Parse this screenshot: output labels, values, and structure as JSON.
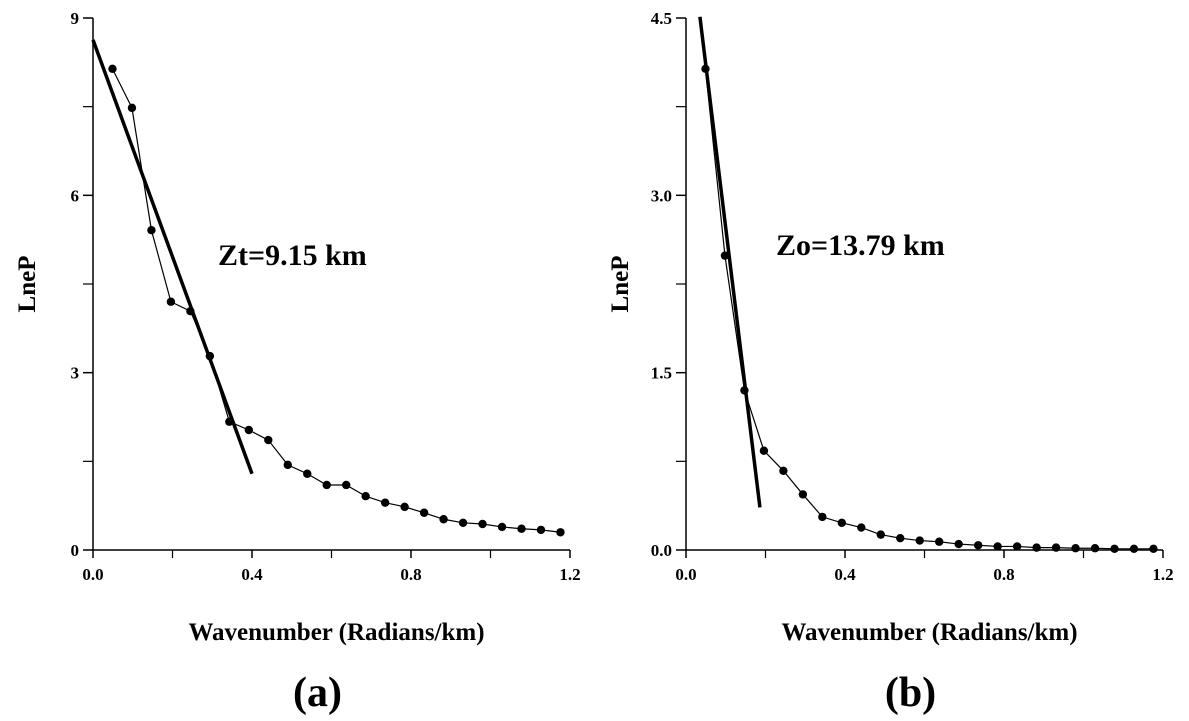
{
  "chart_data": [
    {
      "type": "line",
      "panel_label": "(a)",
      "xlabel": "Wavenumber (Radians/km)",
      "ylabel": "LneP",
      "annotation": "Zt=9.15 km",
      "xlim": [
        0,
        1.2
      ],
      "ylim": [
        0,
        9
      ],
      "xticks": [
        {
          "value": 0,
          "label": "0.0"
        },
        0.4,
        0.8,
        1.2
      ],
      "xminorticks": [
        0.2,
        0.6,
        1.0
      ],
      "yticks": [
        0,
        3,
        6,
        9
      ],
      "yminorticks": [
        1.5,
        4.5,
        7.5
      ],
      "x": [
        0.049,
        0.098,
        0.147,
        0.196,
        0.245,
        0.294,
        0.343,
        0.392,
        0.441,
        0.49,
        0.539,
        0.588,
        0.637,
        0.686,
        0.735,
        0.784,
        0.833,
        0.882,
        0.931,
        0.98,
        1.029,
        1.078,
        1.127,
        1.176
      ],
      "series": [
        {
          "color": "#000000",
          "values": [
            8.14,
            7.48,
            5.41,
            4.2,
            4.04,
            3.28,
            2.17,
            2.03,
            1.86,
            1.44,
            1.29,
            1.1,
            1.1,
            0.91,
            0.8,
            0.73,
            0.63,
            0.52,
            0.46,
            0.44,
            0.39,
            0.36,
            0.34,
            0.3
          ]
        }
      ],
      "fit_line": {
        "color": "#000000",
        "x": [
          0,
          0.4
        ],
        "values": [
          8.63,
          1.29
        ]
      }
    },
    {
      "type": "line",
      "panel_label": "(b)",
      "xlabel": "Wavenumber (Radians/km)",
      "ylabel": "LneP",
      "annotation": "Zo=13.79 km",
      "xlim": [
        0,
        1.2
      ],
      "ylim": [
        0,
        4.5
      ],
      "xticks": [
        {
          "value": 0,
          "label": "0.0"
        },
        0.4,
        0.8,
        1.2
      ],
      "xminorticks": [
        0.2,
        0.6,
        1.0
      ],
      "yticks": [
        {
          "value": 0,
          "label": "0.0"
        },
        1.5,
        {
          "value": 3,
          "label": "3.0"
        },
        4.5
      ],
      "yminorticks": [
        0.75,
        2.25,
        3.75
      ],
      "x": [
        0.049,
        0.098,
        0.147,
        0.196,
        0.245,
        0.294,
        0.343,
        0.392,
        0.441,
        0.49,
        0.539,
        0.588,
        0.637,
        0.686,
        0.735,
        0.784,
        0.833,
        0.882,
        0.931,
        0.98,
        1.029,
        1.078,
        1.127,
        1.176
      ],
      "series": [
        {
          "color": "#000000",
          "values": [
            4.07,
            2.49,
            1.35,
            0.84,
            0.67,
            0.47,
            0.28,
            0.23,
            0.19,
            0.13,
            0.1,
            0.08,
            0.07,
            0.05,
            0.04,
            0.03,
            0.03,
            0.02,
            0.02,
            0.015,
            0.015,
            0.01,
            0.01,
            0.01
          ]
        }
      ],
      "fit_line": {
        "color": "#000000",
        "x": [
          0.035,
          0.186
        ],
        "values": [
          4.51,
          0.36
        ]
      }
    }
  ]
}
